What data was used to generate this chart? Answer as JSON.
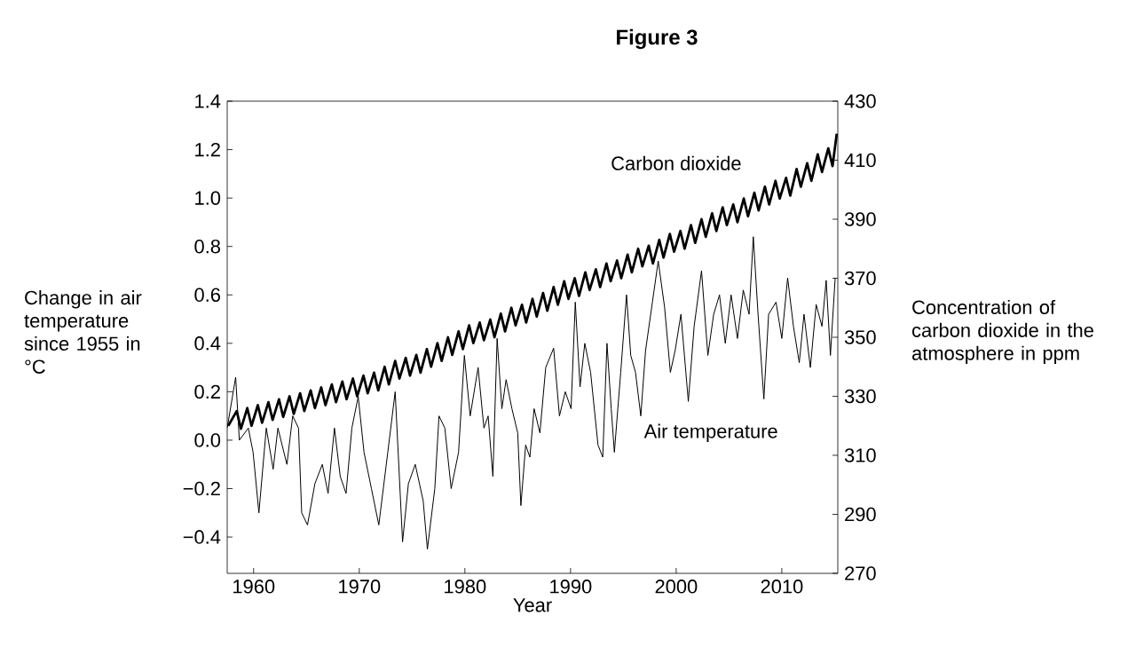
{
  "chart_data": {
    "type": "line",
    "title": "Figure 3",
    "xlabel": "Year",
    "ylabel": "Change in air temperature since 1955 in °C",
    "y2label": "Concentration of carbon dioxide in the atmosphere in ppm",
    "xlim": [
      1957.5,
      2015.3
    ],
    "xticks": [
      1960,
      1970,
      1980,
      1990,
      2000,
      2010
    ],
    "ylim": [
      -0.55,
      1.4
    ],
    "yticks": [
      {
        "value": -0.4,
        "label": "−0.4"
      },
      {
        "value": -0.2,
        "label": "−0.2"
      },
      {
        "value": 0,
        "label": "0.0"
      },
      0.2,
      0.4,
      0.6,
      0.8,
      {
        "value": 1,
        "label": "1.0"
      },
      1.2,
      1.4
    ],
    "y2lim": [
      270,
      430
    ],
    "y2ticks": [
      270,
      290,
      310,
      330,
      350,
      370,
      390,
      410,
      430
    ],
    "grid": false,
    "legend": false,
    "marker": "none",
    "series": [
      {
        "name": "Carbon dioxide",
        "color": "#000000",
        "axis": "y2",
        "x": [
          1957.6,
          1958.4,
          1958.8,
          1959.4,
          1959.8,
          1960.4,
          1960.8,
          1961.4,
          1961.8,
          1962.4,
          1962.8,
          1963.4,
          1963.8,
          1964.4,
          1964.8,
          1965.4,
          1965.8,
          1966.4,
          1966.8,
          1967.4,
          1967.8,
          1968.4,
          1968.8,
          1969.4,
          1969.8,
          1970.4,
          1970.8,
          1971.4,
          1971.8,
          1972.4,
          1972.8,
          1973.4,
          1973.8,
          1974.4,
          1974.8,
          1975.4,
          1975.8,
          1976.4,
          1976.8,
          1977.4,
          1977.8,
          1978.4,
          1978.8,
          1979.4,
          1979.8,
          1980.4,
          1980.8,
          1981.4,
          1981.8,
          1982.4,
          1982.8,
          1983.4,
          1983.8,
          1984.4,
          1984.8,
          1985.4,
          1985.8,
          1986.4,
          1986.8,
          1987.4,
          1987.8,
          1988.4,
          1988.8,
          1989.4,
          1989.8,
          1990.4,
          1990.8,
          1991.4,
          1991.8,
          1992.4,
          1992.8,
          1993.4,
          1993.8,
          1994.4,
          1994.8,
          1995.4,
          1995.8,
          1996.4,
          1996.8,
          1997.4,
          1997.8,
          1998.4,
          1998.8,
          1999.4,
          1999.8,
          2000.4,
          2000.8,
          2001.4,
          2001.8,
          2002.4,
          2002.8,
          2003.4,
          2003.8,
          2004.4,
          2004.8,
          2005.4,
          2005.8,
          2006.4,
          2006.8,
          2007.4,
          2007.8,
          2008.4,
          2008.8,
          2009.4,
          2009.8,
          2010.4,
          2010.8,
          2011.4,
          2011.8,
          2012.4,
          2012.8,
          2013.4,
          2013.8,
          2014.4,
          2014.8,
          2015.2
        ],
        "values": [
          320,
          325,
          319,
          326,
          320,
          327,
          321,
          328,
          322,
          329,
          323,
          330,
          324,
          331,
          325,
          332,
          326,
          333,
          327,
          334,
          328,
          335,
          329,
          336,
          330,
          337,
          331,
          338,
          332,
          340,
          334,
          342,
          336,
          343,
          337,
          344,
          338,
          346,
          340,
          348,
          342,
          350,
          344,
          352,
          346,
          354,
          348,
          355,
          349,
          356,
          350,
          358,
          352,
          360,
          354,
          361,
          355,
          363,
          357,
          365,
          359,
          367,
          361,
          369,
          363,
          370,
          364,
          372,
          366,
          373,
          367,
          375,
          369,
          376,
          370,
          378,
          372,
          380,
          374,
          381,
          375,
          383,
          377,
          385,
          379,
          386,
          380,
          388,
          382,
          390,
          384,
          392,
          386,
          394,
          388,
          395,
          389,
          397,
          391,
          399,
          393,
          401,
          395,
          403,
          397,
          404,
          398,
          407,
          401,
          409,
          403,
          412,
          406,
          414,
          408,
          419
        ]
      },
      {
        "name": "Air temperature",
        "color": "#000000",
        "x": [
          1957.5,
          1958.3,
          1958.65,
          1959.5,
          1959.95,
          1960.5,
          1961.2,
          1961.85,
          1962.3,
          1963.15,
          1963.7,
          1964.25,
          1964.55,
          1965.1,
          1965.8,
          1966.5,
          1967.05,
          1967.65,
          1968.2,
          1968.75,
          1969.3,
          1969.9,
          1970.45,
          1971.15,
          1971.85,
          1972.7,
          1973.4,
          1974.1,
          1974.65,
          1975.3,
          1976.05,
          1976.45,
          1977.15,
          1977.55,
          1978.1,
          1978.7,
          1979.4,
          1979.95,
          1980.5,
          1981.25,
          1981.8,
          1982.2,
          1982.65,
          1983.05,
          1983.5,
          1983.9,
          1984.45,
          1985.0,
          1985.3,
          1985.75,
          1986.15,
          1986.55,
          1987.1,
          1987.65,
          1988.4,
          1988.95,
          1989.5,
          1990.05,
          1990.45,
          1990.9,
          1991.35,
          1991.9,
          1992.6,
          1993.05,
          1993.45,
          1993.85,
          1994.15,
          1994.75,
          1995.3,
          1995.7,
          1996.15,
          1996.65,
          1997.1,
          1997.75,
          1998.3,
          1998.9,
          1999.45,
          1999.9,
          2000.45,
          2001.15,
          2001.7,
          2002.4,
          2003.0,
          2003.55,
          2004.1,
          2004.65,
          2005.2,
          2005.8,
          2006.35,
          2006.9,
          2007.3,
          2007.75,
          2008.3,
          2008.75,
          2009.45,
          2010.0,
          2010.55,
          2011.1,
          2011.65,
          2012.1,
          2012.7,
          2013.25,
          2013.8,
          2014.2,
          2014.6,
          2015.05
        ],
        "values": [
          0.05,
          0.26,
          0.0,
          0.05,
          -0.05,
          -0.3,
          0.05,
          -0.12,
          0.05,
          -0.1,
          0.1,
          0.05,
          -0.3,
          -0.35,
          -0.18,
          -0.1,
          -0.22,
          0.05,
          -0.15,
          -0.22,
          0.05,
          0.18,
          -0.05,
          -0.2,
          -0.35,
          -0.05,
          0.2,
          -0.42,
          -0.18,
          -0.1,
          -0.25,
          -0.45,
          -0.2,
          0.1,
          0.05,
          -0.2,
          -0.05,
          0.35,
          0.1,
          0.3,
          0.05,
          0.1,
          -0.15,
          0.42,
          0.13,
          0.25,
          0.13,
          0.03,
          -0.27,
          -0.02,
          -0.07,
          0.13,
          0.03,
          0.3,
          0.38,
          0.1,
          0.2,
          0.13,
          0.57,
          0.22,
          0.4,
          0.28,
          -0.02,
          -0.07,
          0.4,
          0.13,
          -0.05,
          0.28,
          0.6,
          0.35,
          0.28,
          0.1,
          0.37,
          0.57,
          0.74,
          0.55,
          0.28,
          0.37,
          0.52,
          0.16,
          0.47,
          0.7,
          0.35,
          0.52,
          0.6,
          0.4,
          0.6,
          0.42,
          0.62,
          0.52,
          0.84,
          0.52,
          0.17,
          0.52,
          0.57,
          0.42,
          0.67,
          0.47,
          0.32,
          0.52,
          0.3,
          0.56,
          0.47,
          0.66,
          0.35,
          0.67
        ]
      }
    ]
  }
}
